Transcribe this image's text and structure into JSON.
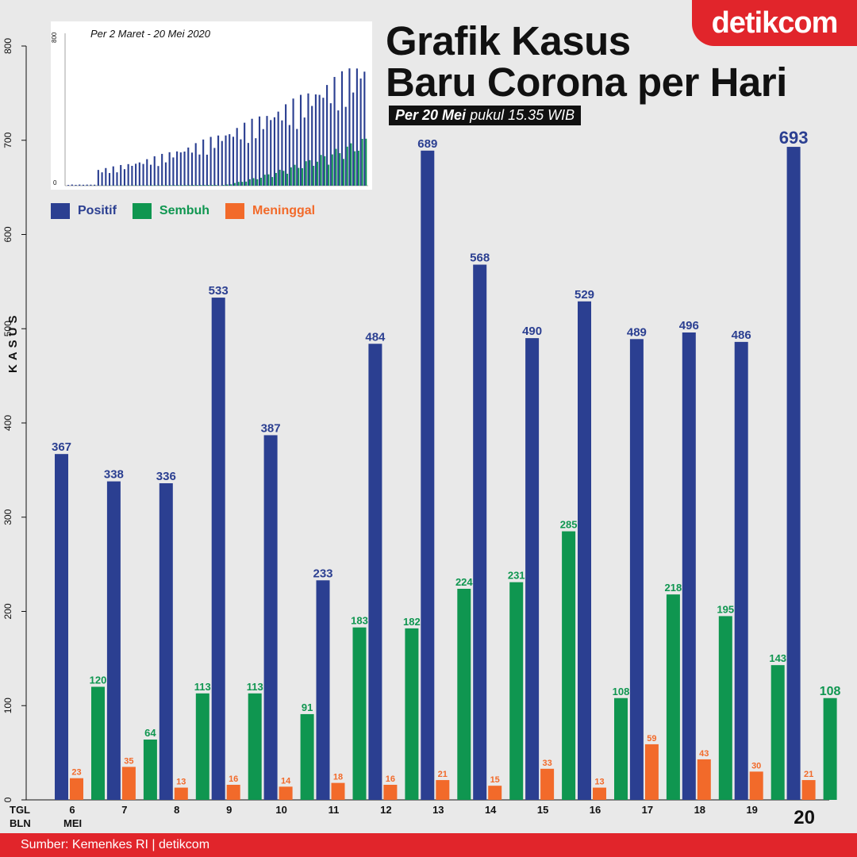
{
  "brand": "detikcom",
  "title_line1": "Grafik Kasus",
  "title_line2": "Baru Corona per Hari",
  "subtitle_bold": "Per 20 Mei",
  "subtitle_rest": " pukul 15.35 WIB",
  "inset_caption": "Per 2 Maret -  20 Mei 2020",
  "inset_ticks": [
    "800",
    "0"
  ],
  "legend": [
    {
      "label": "Positif",
      "color": "#2b3f91"
    },
    {
      "label": "Sembuh",
      "color": "#0f9650"
    },
    {
      "label": "Meninggal",
      "color": "#f26a2a"
    }
  ],
  "y_axis_label": "KASUS",
  "row_label_tgl": "TGL",
  "row_label_bln": "BLN",
  "month_label": "MEI",
  "footer": "Sumber: Kemenkes RI | detikcom",
  "chart_data": {
    "type": "bar",
    "title": "Grafik Kasus Baru Corona per Hari",
    "ylabel": "KASUS",
    "ylim": [
      0,
      800
    ],
    "yticks": [
      0,
      100,
      200,
      300,
      400,
      500,
      600,
      700,
      800
    ],
    "categories": [
      "6",
      "7",
      "8",
      "9",
      "10",
      "11",
      "12",
      "13",
      "14",
      "15",
      "16",
      "17",
      "18",
      "19",
      "20"
    ],
    "series": [
      {
        "name": "Positif",
        "color": "#2b3f91",
        "values": [
          367,
          338,
          336,
          533,
          387,
          233,
          484,
          689,
          568,
          490,
          529,
          489,
          496,
          486,
          693
        ]
      },
      {
        "name": "Sembuh",
        "color": "#0f9650",
        "values": [
          120,
          64,
          113,
          113,
          91,
          183,
          182,
          224,
          231,
          285,
          108,
          218,
          195,
          143,
          108
        ]
      },
      {
        "name": "Meninggal",
        "color": "#f26a2a",
        "values": [
          23,
          35,
          13,
          16,
          14,
          18,
          16,
          21,
          15,
          33,
          13,
          59,
          43,
          30,
          21
        ]
      }
    ]
  }
}
